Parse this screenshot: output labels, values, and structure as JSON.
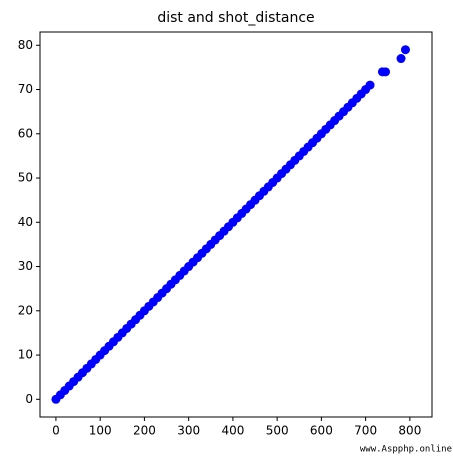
{
  "chart_data": {
    "type": "scatter",
    "title": "dist and shot_distance",
    "x": [
      0,
      10,
      20,
      30,
      40,
      50,
      60,
      70,
      80,
      90,
      100,
      110,
      120,
      130,
      140,
      150,
      160,
      170,
      180,
      190,
      200,
      210,
      220,
      230,
      240,
      250,
      260,
      270,
      280,
      290,
      300,
      310,
      320,
      330,
      340,
      350,
      360,
      370,
      380,
      390,
      400,
      410,
      420,
      430,
      440,
      450,
      460,
      470,
      480,
      490,
      500,
      510,
      520,
      530,
      540,
      550,
      560,
      570,
      580,
      590,
      600,
      610,
      620,
      630,
      640,
      650,
      660,
      670,
      680,
      690,
      700,
      710,
      738,
      745,
      780,
      790
    ],
    "series": [
      {
        "color": "#0000ff",
        "values": [
          0,
          1,
          2,
          3,
          4,
          5,
          6,
          7,
          8,
          9,
          10,
          11,
          12,
          13,
          14,
          15,
          16,
          17,
          18,
          19,
          20,
          21,
          22,
          23,
          24,
          25,
          26,
          27,
          28,
          29,
          30,
          31,
          32,
          33,
          34,
          35,
          36,
          37,
          38,
          39,
          40,
          41,
          42,
          43,
          44,
          45,
          46,
          47,
          48,
          49,
          50,
          51,
          52,
          53,
          54,
          55,
          56,
          57,
          58,
          59,
          60,
          61,
          62,
          63,
          64,
          65,
          66,
          67,
          68,
          69,
          70,
          71,
          74,
          74,
          77,
          79
        ]
      }
    ],
    "xlim": [
      -36,
      850
    ],
    "ylim": [
      -4,
      83
    ],
    "xticks": [
      0,
      100,
      200,
      300,
      400,
      500,
      600,
      700,
      800
    ],
    "yticks": [
      0,
      10,
      20,
      30,
      40,
      50,
      60,
      70,
      80
    ],
    "watermark": "www.Aspphp.online"
  }
}
